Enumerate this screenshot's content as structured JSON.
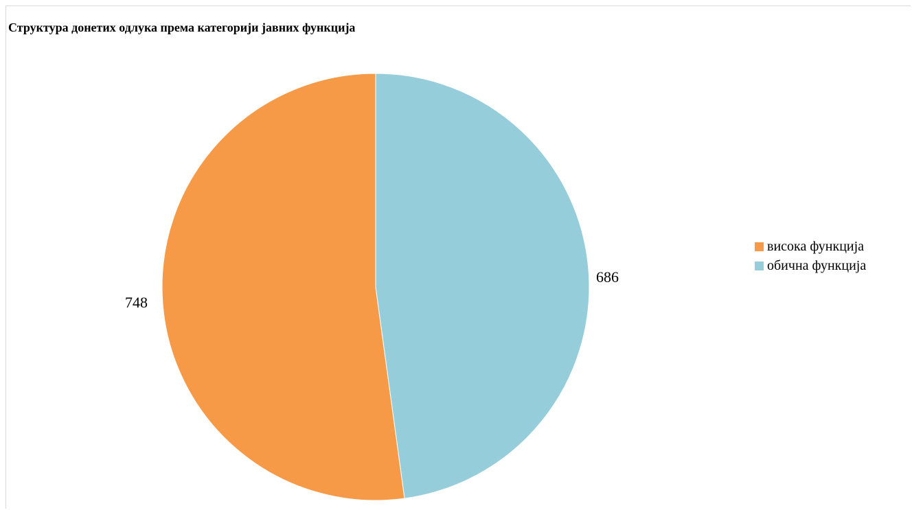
{
  "chart_data": {
    "type": "pie",
    "title": "Структура донетих одлука према категорији јавних функција",
    "categories": [
      "висока функција",
      "обична функција"
    ],
    "values": [
      748,
      686
    ],
    "colors": [
      "#f79a48",
      "#96cddb"
    ],
    "start_angle_deg": 0,
    "direction": "counterclockwise-first-slice",
    "legend_position": "right",
    "data_labels": [
      "748",
      "686"
    ]
  }
}
